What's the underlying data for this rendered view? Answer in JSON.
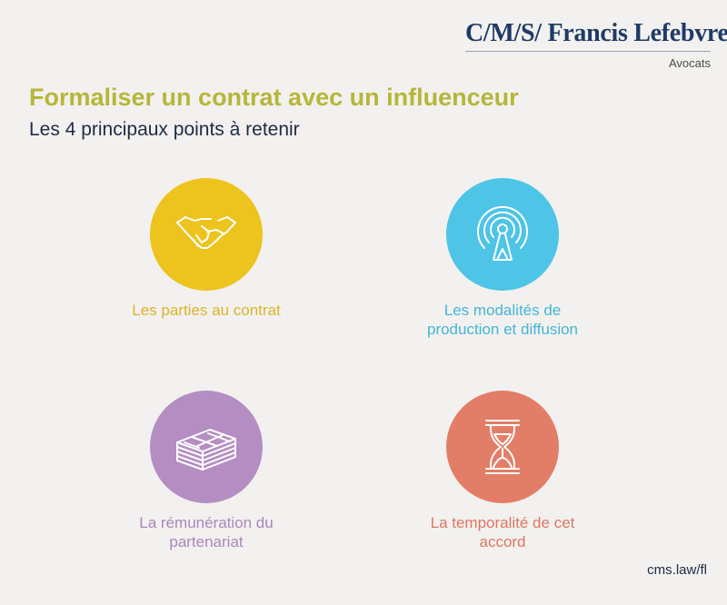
{
  "logo": {
    "main": "C/M/S/ Francis Lefebvre",
    "sub": "Avocats"
  },
  "title": "Formaliser un contrat avec un influenceur",
  "subtitle": "Les 4 principaux points à retenir",
  "items": [
    {
      "icon": "handshake-icon",
      "color": "#edc31d",
      "label_lines": [
        "Les parties au contrat"
      ]
    },
    {
      "icon": "broadcast-antenna-icon",
      "color": "#4ec4e6",
      "label_lines": [
        "Les modalités de",
        "production et diffusion"
      ]
    },
    {
      "icon": "money-stack-icon",
      "color": "#b48ec2",
      "label_lines": [
        "La rémunération du",
        "partenariat"
      ]
    },
    {
      "icon": "hourglass-icon",
      "color": "#e27e67",
      "label_lines": [
        "La temporalité de cet",
        "accord"
      ]
    }
  ],
  "footer": {
    "url": "cms.law/fl"
  }
}
